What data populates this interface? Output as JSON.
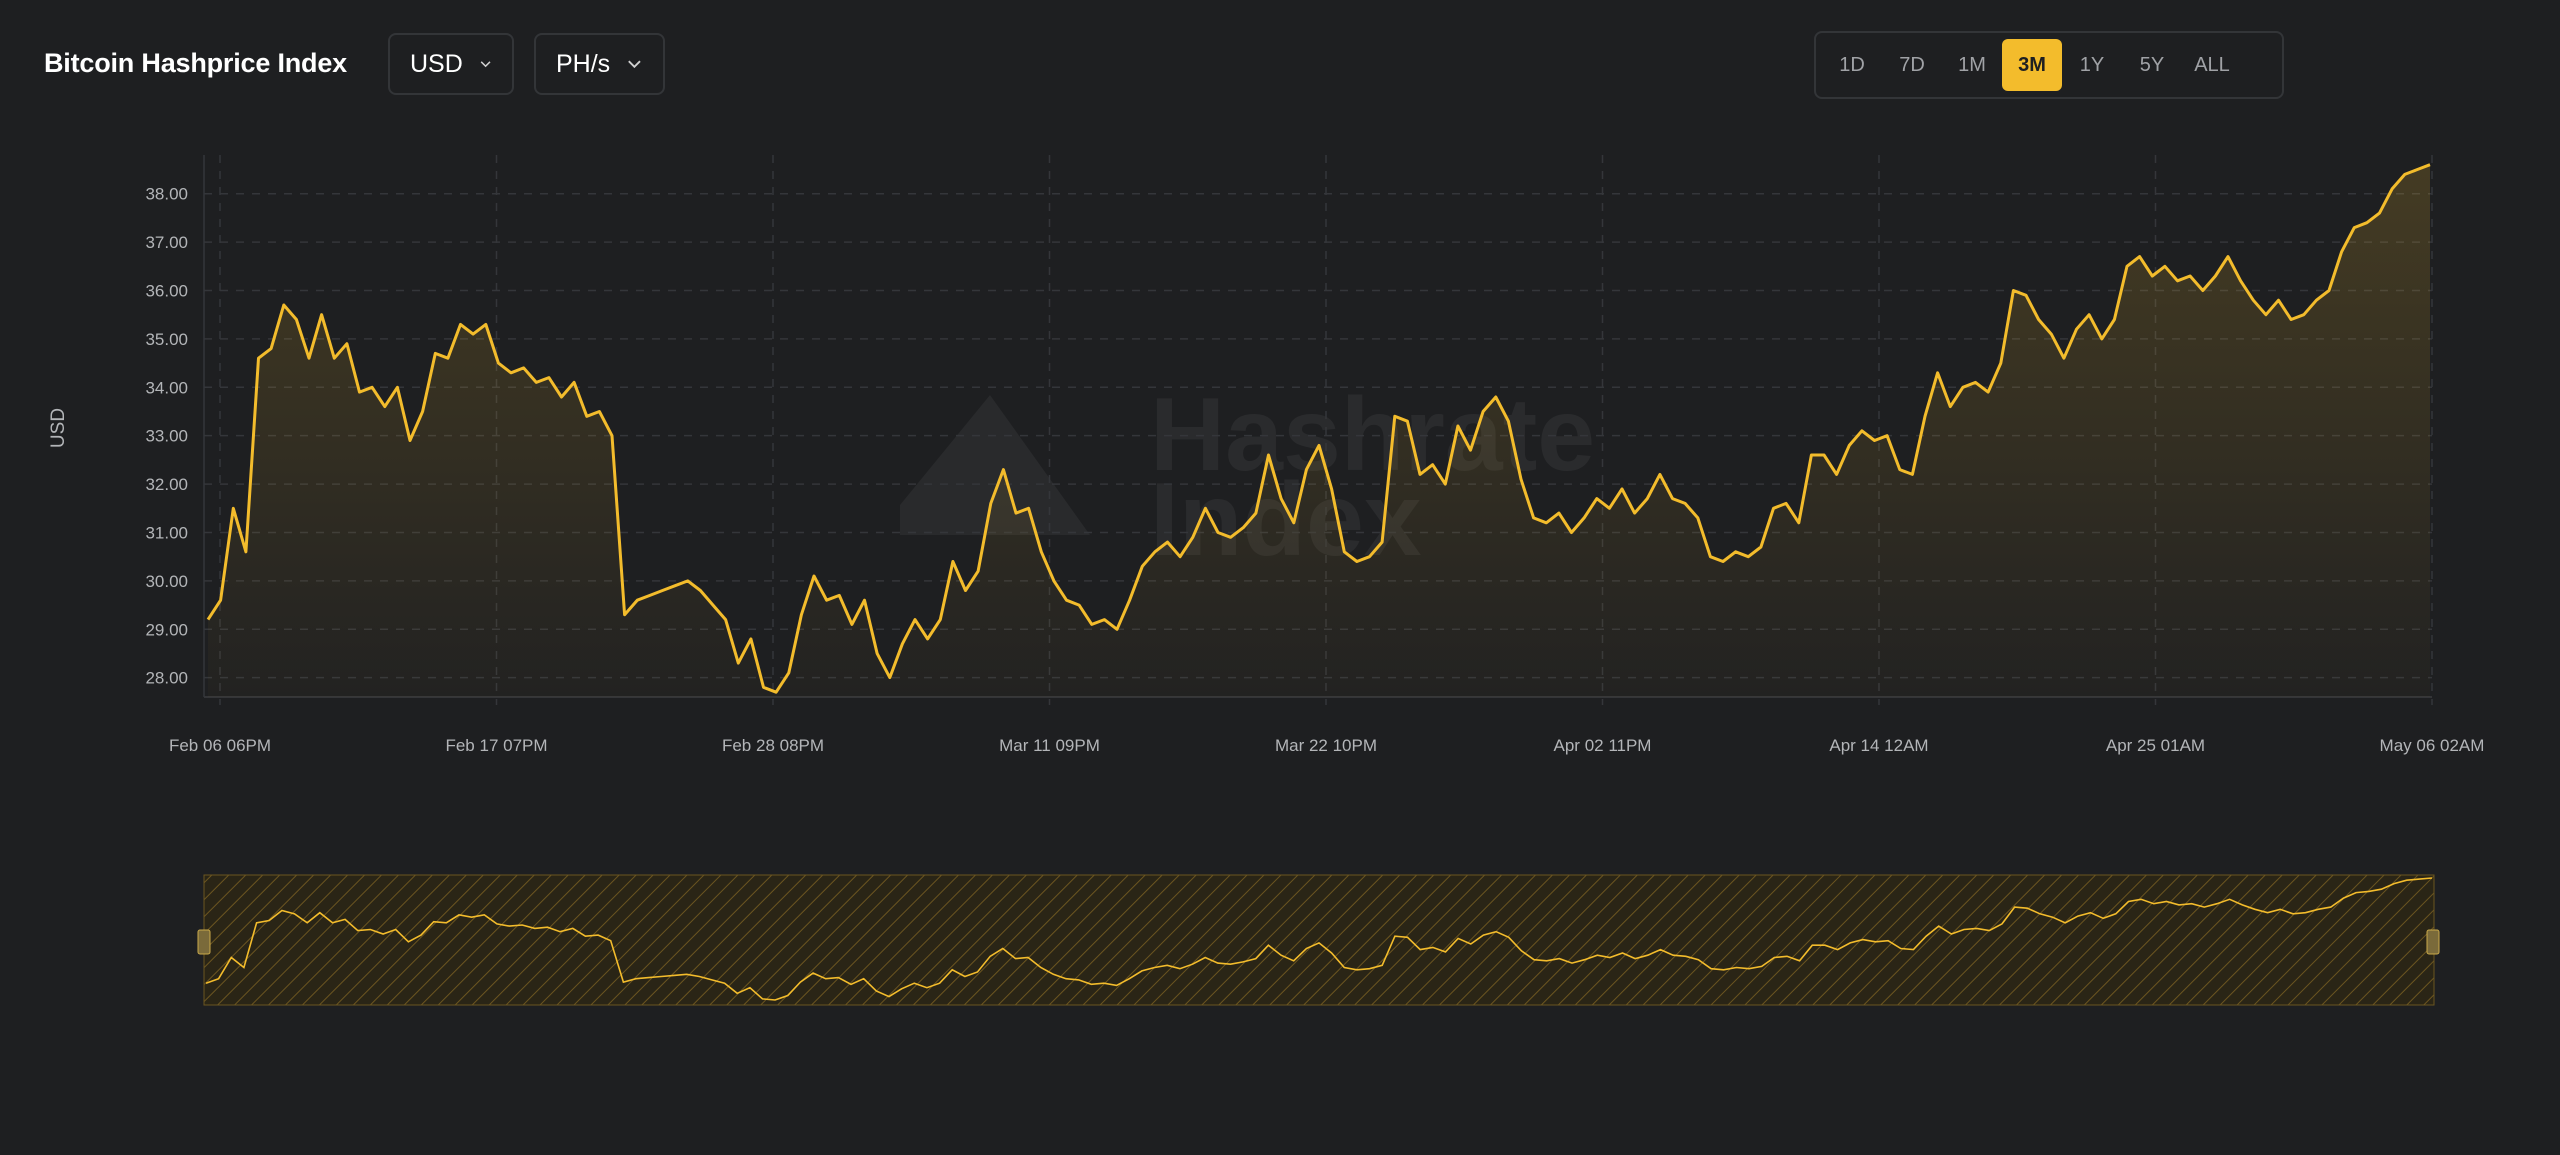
{
  "header": {
    "title": "Bitcoin Hashprice Index",
    "currency_selected": "USD",
    "unit_selected": "PH/s"
  },
  "range_buttons": [
    {
      "label": "1D",
      "active": false
    },
    {
      "label": "7D",
      "active": false
    },
    {
      "label": "1M",
      "active": false
    },
    {
      "label": "3M",
      "active": true
    },
    {
      "label": "1Y",
      "active": false
    },
    {
      "label": "5Y",
      "active": false
    },
    {
      "label": "ALL",
      "active": false
    }
  ],
  "colors": {
    "accent": "#f3bc2c",
    "background": "#1e1f21",
    "grid": "#34363a",
    "axis_text": "#b3b5b8"
  },
  "watermark": {
    "lines": [
      "Hashrate",
      "Index"
    ]
  },
  "chart_data": {
    "type": "area",
    "title": "",
    "ylabel": "USD",
    "xlabel": "",
    "ylim": [
      27.6,
      38.8
    ],
    "yticks": [
      "28.00",
      "29.00",
      "30.00",
      "31.00",
      "32.00",
      "33.00",
      "34.00",
      "35.00",
      "36.00",
      "37.00",
      "38.00"
    ],
    "xticks": [
      "Feb 06 06PM",
      "Feb 17 07PM",
      "Feb 28 08PM",
      "Mar 11 09PM",
      "Mar 22 10PM",
      "Apr 02 11PM",
      "Apr 14 12AM",
      "Apr 25 01AM",
      "May 06 02AM"
    ],
    "grid": true,
    "legend": "none",
    "x_start": "Feb 06 06PM",
    "x_end": "May 06 02AM",
    "series": [
      {
        "values": [
          29.2,
          29.6,
          31.5,
          30.6,
          34.6,
          34.8,
          35.7,
          35.4,
          34.6,
          35.5,
          34.6,
          34.9,
          33.9,
          34.0,
          33.6,
          34.0,
          32.9,
          33.5,
          34.7,
          34.6,
          35.3,
          35.1,
          35.3,
          34.5,
          34.3,
          34.4,
          34.1,
          34.2,
          33.8,
          34.1,
          33.4,
          33.5,
          33.0,
          29.3,
          29.6,
          29.7,
          29.8,
          29.9,
          30.0,
          29.8,
          29.5,
          29.2,
          28.3,
          28.8,
          27.8,
          27.7,
          28.1,
          29.3,
          30.1,
          29.6,
          29.7,
          29.1,
          29.6,
          28.5,
          28.0,
          28.7,
          29.2,
          28.8,
          29.2,
          30.4,
          29.8,
          30.2,
          31.6,
          32.3,
          31.4,
          31.5,
          30.6,
          30.0,
          29.6,
          29.5,
          29.1,
          29.2,
          29.0,
          29.6,
          30.3,
          30.6,
          30.8,
          30.5,
          30.9,
          31.5,
          31.0,
          30.9,
          31.1,
          31.4,
          32.6,
          31.7,
          31.2,
          32.3,
          32.8,
          31.9,
          30.6,
          30.4,
          30.5,
          30.8,
          33.4,
          33.3,
          32.2,
          32.4,
          32.0,
          33.2,
          32.7,
          33.5,
          33.8,
          33.3,
          32.1,
          31.3,
          31.2,
          31.4,
          31.0,
          31.3,
          31.7,
          31.5,
          31.9,
          31.4,
          31.7,
          32.2,
          31.7,
          31.6,
          31.3,
          30.5,
          30.4,
          30.6,
          30.5,
          30.7,
          31.5,
          31.6,
          31.2,
          32.6,
          32.6,
          32.2,
          32.8,
          33.1,
          32.9,
          33.0,
          32.3,
          32.2,
          33.4,
          34.3,
          33.6,
          34.0,
          34.1,
          33.9,
          34.5,
          36.0,
          35.9,
          35.4,
          35.1,
          34.6,
          35.2,
          35.5,
          35.0,
          35.4,
          36.5,
          36.7,
          36.3,
          36.5,
          36.2,
          36.3,
          36.0,
          36.3,
          36.7,
          36.2,
          35.8,
          35.5,
          35.8,
          35.4,
          35.5,
          35.8,
          36.0,
          36.8,
          37.3,
          37.4,
          37.6,
          38.1,
          38.4,
          38.5,
          38.6
        ]
      }
    ]
  }
}
